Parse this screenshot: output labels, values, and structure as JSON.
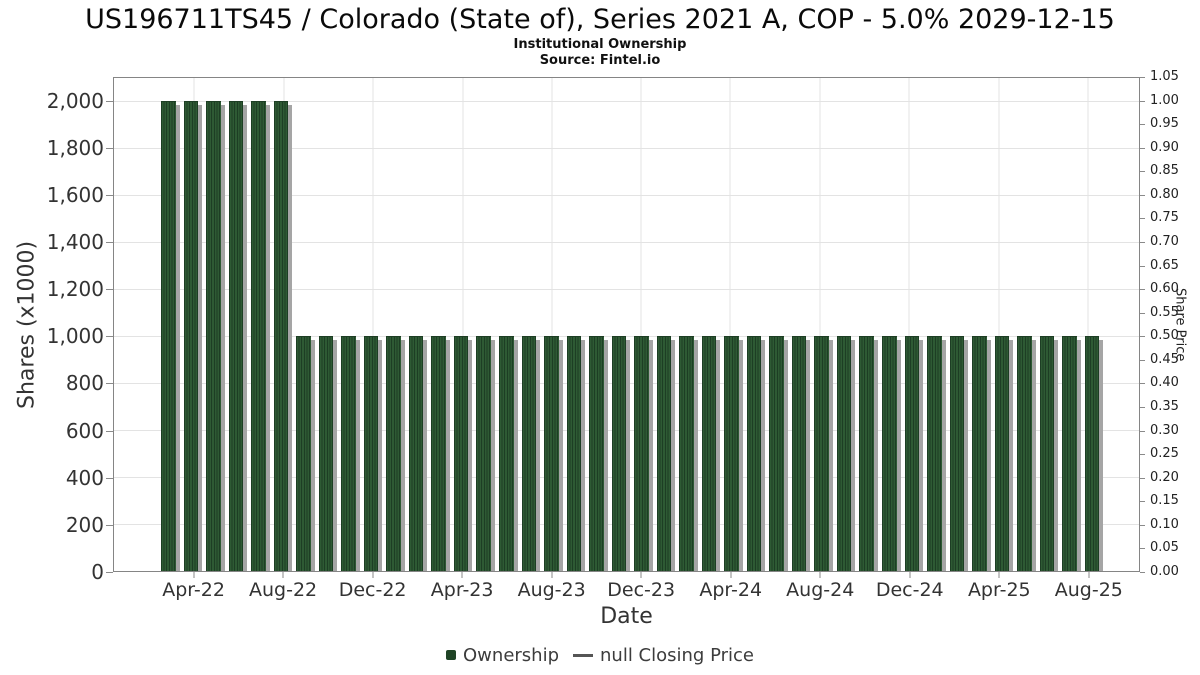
{
  "header": {
    "title": "US196711TS45 / Colorado (State of), Series 2021 A, COP - 5.0% 2029-12-15",
    "subtitle": "Institutional Ownership",
    "source": "Source: Fintel.io"
  },
  "chart_data": {
    "type": "bar",
    "title": "US196711TS45 / Colorado (State of), Series 2021 A, COP - 5.0% 2029-12-15",
    "subtitle": "Institutional Ownership",
    "source": "Source: Fintel.io",
    "xlabel": "Date",
    "ylabel_left": "Shares (x1000)",
    "ylabel_right": "Share Price",
    "categories": [
      "Mar-22",
      "Apr-22",
      "May-22",
      "Jun-22",
      "Jul-22",
      "Aug-22",
      "Sep-22",
      "Oct-22",
      "Nov-22",
      "Dec-22",
      "Jan-23",
      "Feb-23",
      "Mar-23",
      "Apr-23",
      "May-23",
      "Jun-23",
      "Jul-23",
      "Aug-23",
      "Sep-23",
      "Oct-23",
      "Nov-23",
      "Dec-23",
      "Jan-24",
      "Feb-24",
      "Mar-24",
      "Apr-24",
      "May-24",
      "Jun-24",
      "Jul-24",
      "Aug-24",
      "Sep-24",
      "Oct-24",
      "Nov-24",
      "Dec-24",
      "Jan-25",
      "Feb-25",
      "Mar-25",
      "Apr-25",
      "May-25",
      "Jun-25",
      "Jul-25",
      "Aug-25"
    ],
    "series": [
      {
        "name": "Ownership",
        "type": "bar",
        "axis": "left",
        "values": [
          2000,
          2000,
          2000,
          2000,
          2000,
          2000,
          1000,
          1000,
          1000,
          1000,
          1000,
          1000,
          1000,
          1000,
          1000,
          1000,
          1000,
          1000,
          1000,
          1000,
          1000,
          1000,
          1000,
          1000,
          1000,
          1000,
          1000,
          1000,
          1000,
          1000,
          1000,
          1000,
          1000,
          1000,
          1000,
          1000,
          1000,
          1000,
          1000,
          1000,
          1000,
          1000
        ]
      },
      {
        "name": "null Closing Price",
        "type": "line",
        "axis": "right",
        "values": []
      }
    ],
    "x_tick_labels": [
      "Apr-22",
      "Aug-22",
      "Dec-22",
      "Apr-23",
      "Aug-23",
      "Dec-23",
      "Apr-24",
      "Aug-24",
      "Dec-24",
      "Apr-25",
      "Aug-25"
    ],
    "left_axis": {
      "tick_values": [
        0,
        200,
        400,
        600,
        800,
        1000,
        1200,
        1400,
        1600,
        1800,
        2000
      ],
      "tick_labels": [
        "0",
        "200",
        "400",
        "600",
        "800",
        "1,000",
        "1,200",
        "1,400",
        "1,600",
        "1,800",
        "2,000"
      ],
      "ylim": [
        0,
        2100
      ]
    },
    "right_axis": {
      "tick_labels": [
        "0.00",
        "0.05",
        "0.10",
        "0.15",
        "0.20",
        "0.25",
        "0.30",
        "0.35",
        "0.40",
        "0.45",
        "0.50",
        "0.55",
        "0.60",
        "0.65",
        "0.70",
        "0.75",
        "0.80",
        "0.85",
        "0.90",
        "0.95",
        "1.00",
        "1.05"
      ],
      "ylim": [
        0,
        1.05
      ]
    },
    "grid": {
      "horizontal": true,
      "vertical": true,
      "color": "#e3e3e3"
    },
    "legend_position": "bottom-center"
  },
  "legend": {
    "items": [
      {
        "label": "Ownership",
        "marker": "square-icon",
        "color": "#1f4426"
      },
      {
        "label": "null Closing Price",
        "marker": "dash-icon",
        "color": "#555555"
      }
    ]
  },
  "colors": {
    "bar_base": "#2e5a34",
    "bar_stripe": "#1d3e24",
    "bar_shadow": "#a5a5a5",
    "grid": "#e3e3e3",
    "frame": "#858585",
    "tick_text": "#333333"
  }
}
